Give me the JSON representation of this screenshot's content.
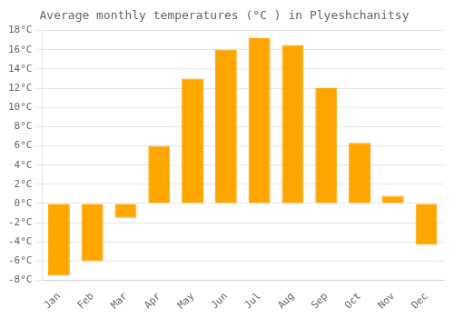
{
  "chart_data": {
    "type": "bar",
    "title": "Average monthly temperatures (°C ) in Plyeshchanitsy",
    "categories": [
      "Jan",
      "Feb",
      "Mar",
      "Apr",
      "May",
      "Jun",
      "Jul",
      "Aug",
      "Sep",
      "Oct",
      "Nov",
      "Dec"
    ],
    "values": [
      -7.5,
      -6.0,
      -1.5,
      6.0,
      13.0,
      16.0,
      17.2,
      16.5,
      12.0,
      6.3,
      0.8,
      -4.3
    ],
    "color": "#FFA500",
    "ylim": [
      -8,
      18
    ],
    "yticks": [
      {
        "value": -8,
        "label": "-8°C"
      },
      {
        "value": -6,
        "label": "-6°C"
      },
      {
        "value": -4,
        "label": "-4°C"
      },
      {
        "value": -2,
        "label": "-2°C"
      },
      {
        "value": 0,
        "label": "0°C"
      },
      {
        "value": 2,
        "label": "2°C"
      },
      {
        "value": 4,
        "label": "4°C"
      },
      {
        "value": 6,
        "label": "6°C"
      },
      {
        "value": 8,
        "label": "8°C"
      },
      {
        "value": 10,
        "label": "10°C"
      },
      {
        "value": 12,
        "label": "12°C"
      },
      {
        "value": 14,
        "label": "14°C"
      },
      {
        "value": 16,
        "label": "16°C"
      },
      {
        "value": 18,
        "label": "18°C"
      }
    ],
    "grid": true
  }
}
